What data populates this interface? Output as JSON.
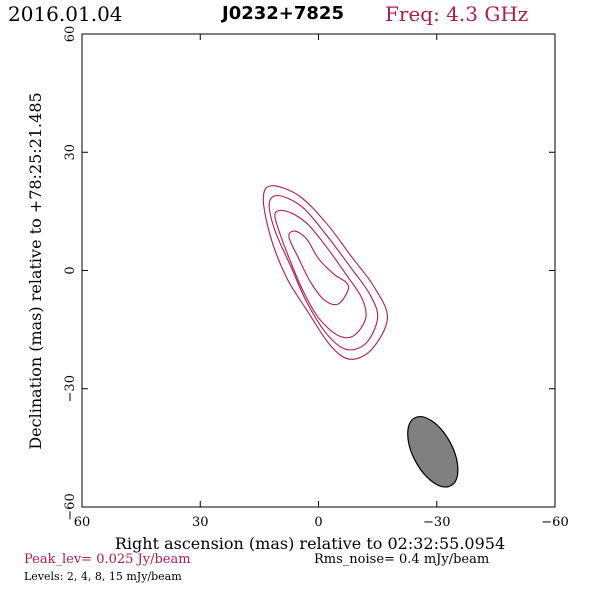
{
  "header": {
    "date": "2016.01.04",
    "source": "J0232+7825",
    "freq": "Freq: 4.3 GHz"
  },
  "footer": {
    "peak": "Peak_lev=  0.025 Jy/beam",
    "rms": "Rms_noise=  0.4 mJy/beam",
    "levels": "Levels:  2,  4,  8,  15 mJy/beam"
  },
  "colors": {
    "contour": "#b01c4a",
    "beam_fill": "#808080",
    "axis": "#000000"
  },
  "chart_data": {
    "type": "contour",
    "xlabel": "Right ascension (mas) relative to 02:32:55.0954",
    "ylabel": "Declination (mas) relative to +78:25:21.485",
    "xlim": [
      60,
      -60
    ],
    "ylim": [
      -60,
      60
    ],
    "x_ticks": [
      60,
      30,
      0,
      -30,
      -60
    ],
    "x_tick_labels": [
      "60",
      "30",
      "0",
      "−30",
      "−60"
    ],
    "y_ticks": [
      -60,
      -30,
      0,
      30,
      60
    ],
    "y_tick_labels": [
      "−60",
      "−30",
      "0",
      "30",
      "60"
    ],
    "contour_levels_mJy_per_beam": [
      2,
      4,
      8,
      15
    ],
    "contours": [
      {
        "level": 2,
        "points": [
          [
            -17.5,
            -12
          ],
          [
            -13.5,
            -20
          ],
          [
            -8,
            -22.5
          ],
          [
            -3,
            -19
          ],
          [
            3,
            -10
          ],
          [
            8,
            -2
          ],
          [
            12,
            8
          ],
          [
            14,
            18
          ],
          [
            12,
            21.5
          ],
          [
            5,
            19
          ],
          [
            -2,
            12
          ],
          [
            -8,
            4
          ],
          [
            -14,
            -4
          ]
        ]
      },
      {
        "level": 4,
        "points": [
          [
            -15,
            -12
          ],
          [
            -12,
            -18.5
          ],
          [
            -7,
            -20
          ],
          [
            -2,
            -16
          ],
          [
            3,
            -8
          ],
          [
            7,
            1
          ],
          [
            11,
            10
          ],
          [
            12.5,
            17
          ],
          [
            10,
            19
          ],
          [
            4,
            16
          ],
          [
            -2,
            9
          ],
          [
            -8,
            1
          ],
          [
            -13,
            -6
          ]
        ]
      },
      {
        "level": 8,
        "points": [
          [
            -12,
            -12
          ],
          [
            -9,
            -16.5
          ],
          [
            -5,
            -16.5
          ],
          [
            0,
            -12
          ],
          [
            4,
            -5
          ],
          [
            7,
            2
          ],
          [
            10,
            10
          ],
          [
            11,
            14.5
          ],
          [
            8,
            15
          ],
          [
            3,
            12
          ],
          [
            -2,
            6
          ],
          [
            -7,
            -1
          ],
          [
            -11,
            -7
          ]
        ]
      },
      {
        "level": 15,
        "points": [
          [
            -7.5,
            -5
          ],
          [
            -5,
            -8.5
          ],
          [
            -1.5,
            -7.5
          ],
          [
            2,
            -3
          ],
          [
            5,
            3
          ],
          [
            7.5,
            8.5
          ],
          [
            6,
            10
          ],
          [
            3,
            8
          ],
          [
            0,
            3
          ],
          [
            -4,
            -1
          ],
          [
            -7,
            -3
          ]
        ]
      }
    ],
    "beam": {
      "center": [
        -29,
        -46
      ],
      "major_mas": 19.5,
      "minor_mas": 10,
      "major_axis_pa_from_vertical_deg": 28
    }
  }
}
